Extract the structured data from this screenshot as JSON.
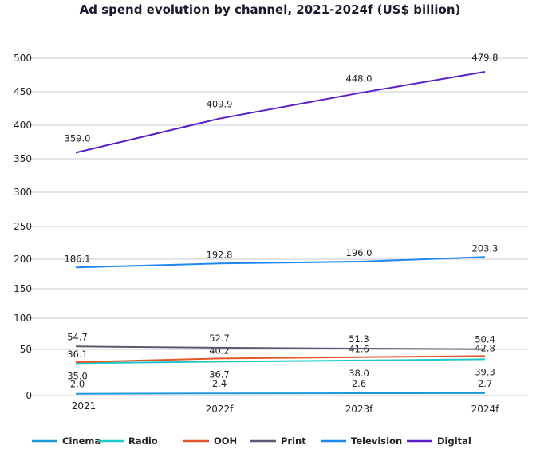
{
  "chart_data": {
    "type": "line",
    "title": "Ad spend evolution by channel, 2021-2024f (US$ billion)",
    "xlabel": "",
    "ylabel": "",
    "categories": [
      "2021",
      "2022f",
      "2023f",
      "2024f"
    ],
    "yticks": [
      0,
      50,
      100,
      150,
      200,
      250,
      300,
      350,
      400,
      450,
      500
    ],
    "ylim": [
      0,
      500
    ],
    "grid": true,
    "legend": "bottom",
    "series": [
      {
        "name": "Cinema",
        "values": [
          2.0,
          2.4,
          2.6,
          2.7
        ],
        "color": "#1a9ad6"
      },
      {
        "name": "Radio",
        "values": [
          35.0,
          36.7,
          38.0,
          39.3
        ],
        "color": "#1ec8c8"
      },
      {
        "name": "OOH",
        "values": [
          36.1,
          40.2,
          41.6,
          42.8
        ],
        "color": "#e0592a"
      },
      {
        "name": "Print",
        "values": [
          54.7,
          52.7,
          51.3,
          50.4
        ],
        "color": "#5a5a72"
      },
      {
        "name": "Television",
        "values": [
          186.1,
          192.8,
          196.0,
          203.3
        ],
        "color": "#1e88f0"
      },
      {
        "name": "Digital",
        "values": [
          359.0,
          409.9,
          448.0,
          479.8
        ],
        "color": "#5b1fc9"
      }
    ]
  }
}
